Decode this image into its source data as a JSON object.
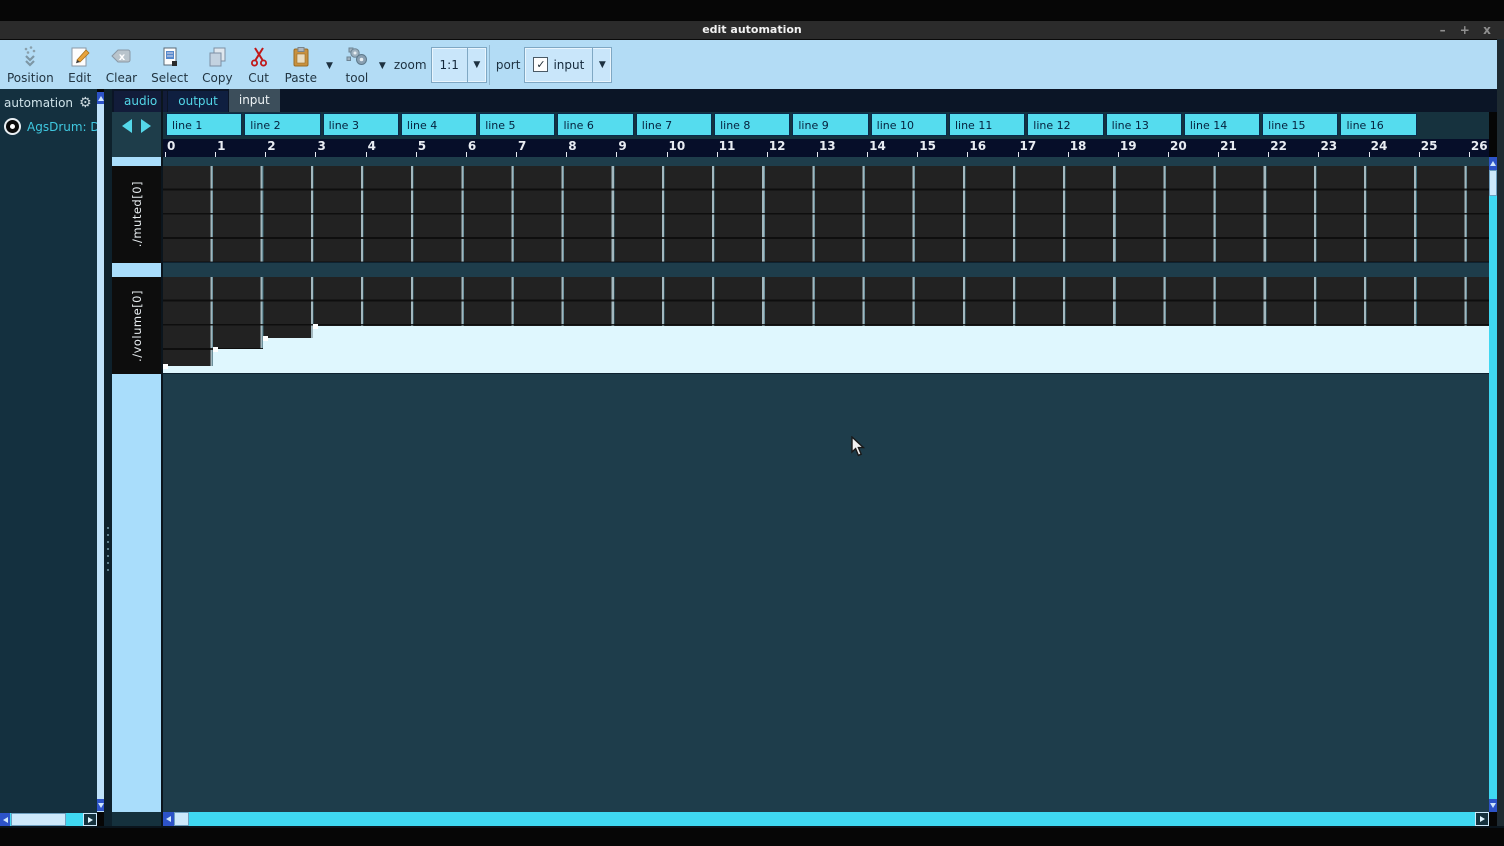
{
  "window": {
    "title": "edit automation",
    "controls": {
      "minimize": "–",
      "maximize": "+",
      "close": "x"
    }
  },
  "toolbar": {
    "buttons": [
      {
        "id": "position",
        "label": "Position"
      },
      {
        "id": "edit",
        "label": "Edit"
      },
      {
        "id": "clear",
        "label": "Clear"
      },
      {
        "id": "select",
        "label": "Select"
      },
      {
        "id": "copy",
        "label": "Copy"
      },
      {
        "id": "cut",
        "label": "Cut"
      },
      {
        "id": "paste",
        "label": "Paste"
      }
    ],
    "tool": {
      "label": "tool"
    },
    "zoom": {
      "label": "zoom",
      "value": "1:1"
    },
    "port": {
      "label": "port",
      "value": "input",
      "checked": true
    }
  },
  "sidebar": {
    "header": "automation",
    "items": [
      {
        "label": "AgsDrum: Defau",
        "selected": true
      }
    ]
  },
  "tabs": [
    {
      "label": "audio",
      "active": false
    },
    {
      "label": "output",
      "active": false
    },
    {
      "label": "input",
      "active": true
    }
  ],
  "timeline": {
    "line_headers": [
      "line 1",
      "line 2",
      "line 3",
      "line 4",
      "line 5",
      "line 6",
      "line 7",
      "line 8",
      "line 9",
      "line 10",
      "line 11",
      "line 12",
      "line 13",
      "line 14",
      "line 15",
      "line 16"
    ],
    "ruler_ticks": [
      0,
      1,
      2,
      3,
      4,
      5,
      6,
      7,
      8,
      9,
      10,
      11,
      12,
      13,
      14,
      15,
      16,
      17,
      18,
      19,
      20,
      21,
      22,
      23,
      24,
      25,
      26
    ]
  },
  "lanes": [
    {
      "name": "./muted[0]",
      "automation": null
    },
    {
      "name": "./volume[0]",
      "automation": {
        "unit_beats": [
          0,
          1,
          2,
          3
        ],
        "values": [
          0.08,
          0.26,
          0.37,
          0.5
        ],
        "plateau_to_end": true
      }
    }
  ],
  "colors": {
    "toolbar_bg": "#b3dcf5",
    "cyan_accent": "#55dcee",
    "scroll_track": "#3fd8f2",
    "scroll_button": "#2d53c8",
    "editor_bg": "#1e3d4b",
    "lane_bg": "#222222",
    "automation_fill": "#dff7fe",
    "label_col_bg": "#a9ddfb",
    "sidebar_bg": "#14303f",
    "ruler_bg": "#060e29",
    "tab_active_bg": "#3c4e5b"
  }
}
